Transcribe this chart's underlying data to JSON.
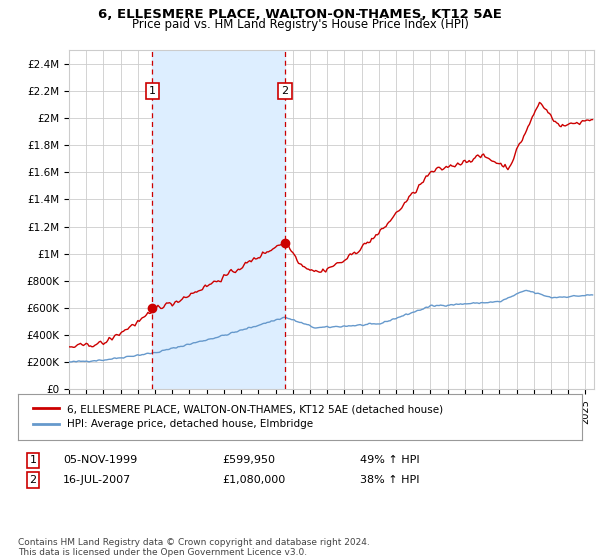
{
  "title": "6, ELLESMERE PLACE, WALTON-ON-THAMES, KT12 5AE",
  "subtitle": "Price paid vs. HM Land Registry's House Price Index (HPI)",
  "ylim": [
    0,
    2500000
  ],
  "yticks": [
    0,
    200000,
    400000,
    600000,
    800000,
    1000000,
    1200000,
    1400000,
    1600000,
    1800000,
    2000000,
    2200000,
    2400000
  ],
  "ytick_labels": [
    "£0",
    "£200K",
    "£400K",
    "£600K",
    "£800K",
    "£1M",
    "£1.2M",
    "£1.4M",
    "£1.6M",
    "£1.8M",
    "£2M",
    "£2.2M",
    "£2.4M"
  ],
  "xlim_start": 1995.0,
  "xlim_end": 2025.5,
  "sale1_x": 1999.846,
  "sale1_y": 599950,
  "sale1_label": "1",
  "sale2_x": 2007.54,
  "sale2_y": 1080000,
  "sale2_label": "2",
  "red_line_color": "#cc0000",
  "blue_line_color": "#6699cc",
  "vline_color": "#cc0000",
  "shade_color": "#ddeeff",
  "grid_color": "#cccccc",
  "background_color": "#ffffff",
  "legend_entry1": "6, ELLESMERE PLACE, WALTON-ON-THAMES, KT12 5AE (detached house)",
  "legend_entry2": "HPI: Average price, detached house, Elmbridge",
  "table_row1_num": "1",
  "table_row1_date": "05-NOV-1999",
  "table_row1_price": "£599,950",
  "table_row1_hpi": "49% ↑ HPI",
  "table_row2_num": "2",
  "table_row2_date": "16-JUL-2007",
  "table_row2_price": "£1,080,000",
  "table_row2_hpi": "38% ↑ HPI",
  "footer": "Contains HM Land Registry data © Crown copyright and database right 2024.\nThis data is licensed under the Open Government Licence v3.0.",
  "xtick_years": [
    1995,
    1996,
    1997,
    1998,
    1999,
    2000,
    2001,
    2002,
    2003,
    2004,
    2005,
    2006,
    2007,
    2008,
    2009,
    2010,
    2011,
    2012,
    2013,
    2014,
    2015,
    2016,
    2017,
    2018,
    2019,
    2020,
    2021,
    2022,
    2023,
    2024,
    2025
  ]
}
